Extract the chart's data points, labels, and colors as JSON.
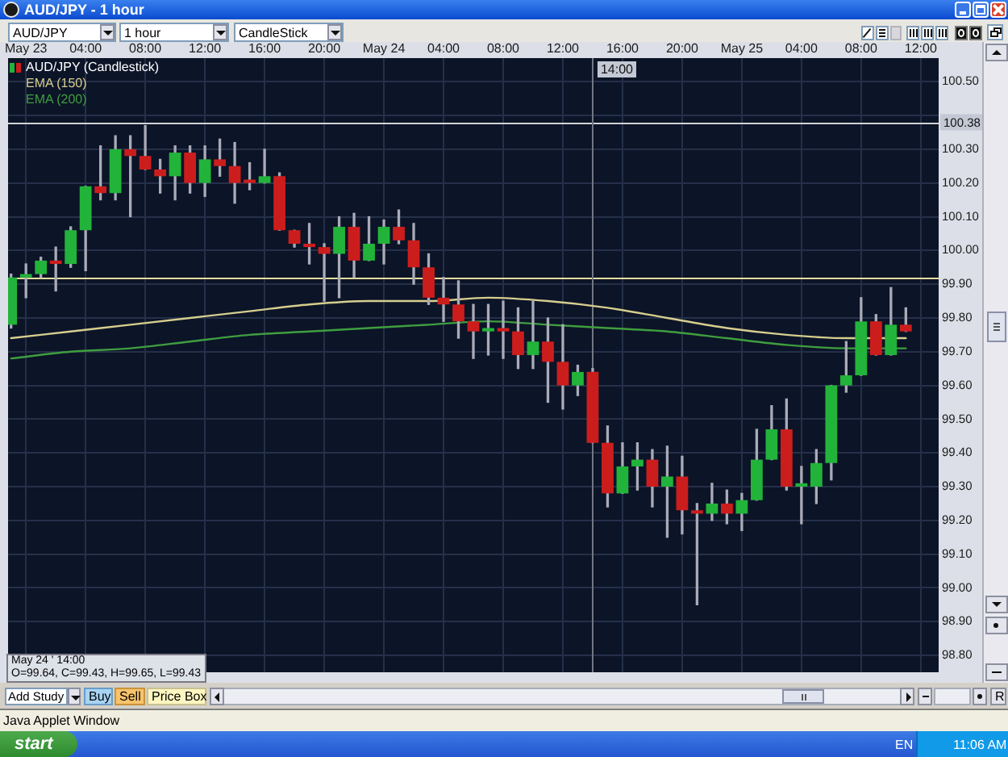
{
  "chart_data": {
    "type": "candlestick",
    "title": "AUD/JPY - 1 hour",
    "series": [
      {
        "name": "AUD/JPY (Candlestick)",
        "x": [
          "--05-22T23:00",
          "--05-23T00:00",
          "--05-23T01:00",
          "--05-23T02:00",
          "--05-23T03:00",
          "--05-23T04:00",
          "--05-23T05:00",
          "--05-23T06:00",
          "--05-23T07:00",
          "--05-23T08:00",
          "--05-23T09:00",
          "--05-23T10:00",
          "--05-23T11:00",
          "--05-23T12:00",
          "--05-23T13:00",
          "--05-23T14:00",
          "--05-23T15:00",
          "--05-23T16:00",
          "--05-23T17:00",
          "--05-23T18:00",
          "--05-23T19:00",
          "--05-23T20:00",
          "--05-23T21:00",
          "--05-23T22:00",
          "--05-23T23:00",
          "--05-24T00:00",
          "--05-24T01:00",
          "--05-24T02:00",
          "--05-24T03:00",
          "--05-24T04:00",
          "--05-24T05:00",
          "--05-24T06:00",
          "--05-24T07:00",
          "--05-24T08:00",
          "--05-24T09:00",
          "--05-24T10:00",
          "--05-24T11:00",
          "--05-24T12:00",
          "--05-24T13:00",
          "--05-24T14:00",
          "--05-24T15:00",
          "--05-24T16:00",
          "--05-24T17:00",
          "--05-24T18:00",
          "--05-24T19:00",
          "--05-24T20:00",
          "--05-24T21:00",
          "--05-24T22:00",
          "--05-24T23:00",
          "--05-25T00:00",
          "--05-25T01:00",
          "--05-25T02:00",
          "--05-25T03:00",
          "--05-25T04:00",
          "--05-25T05:00",
          "--05-25T06:00",
          "--05-25T07:00",
          "--05-25T08:00",
          "--05-25T09:00",
          "--05-25T10:00",
          "--05-25T11:00"
        ],
        "ohlc": [
          [
            99.78,
            99.93,
            99.77,
            99.92
          ],
          [
            99.92,
            99.96,
            99.86,
            99.93
          ],
          [
            99.93,
            99.98,
            99.92,
            99.97
          ],
          [
            99.97,
            100.01,
            99.88,
            99.96
          ],
          [
            99.96,
            100.07,
            99.95,
            100.06
          ],
          [
            100.06,
            100.19,
            99.94,
            100.19
          ],
          [
            100.19,
            100.31,
            100.15,
            100.17
          ],
          [
            100.17,
            100.34,
            100.15,
            100.3
          ],
          [
            100.3,
            100.34,
            100.1,
            100.28
          ],
          [
            100.28,
            100.37,
            100.24,
            100.24
          ],
          [
            100.24,
            100.27,
            100.17,
            100.22
          ],
          [
            100.22,
            100.31,
            100.15,
            100.29
          ],
          [
            100.29,
            100.31,
            100.17,
            100.2
          ],
          [
            100.2,
            100.31,
            100.16,
            100.27
          ],
          [
            100.27,
            100.33,
            100.22,
            100.25
          ],
          [
            100.25,
            100.32,
            100.14,
            100.2
          ],
          [
            100.21,
            100.26,
            100.18,
            100.2
          ],
          [
            100.2,
            100.3,
            100.2,
            100.22
          ],
          [
            100.22,
            100.23,
            100.06,
            100.06
          ],
          [
            100.06,
            100.06,
            100.01,
            100.02
          ],
          [
            100.02,
            100.08,
            99.96,
            100.01
          ],
          [
            100.01,
            100.02,
            99.85,
            99.99
          ],
          [
            99.99,
            100.1,
            99.86,
            100.07
          ],
          [
            100.07,
            100.11,
            99.92,
            99.97
          ],
          [
            99.97,
            100.1,
            99.97,
            100.02
          ],
          [
            100.02,
            100.09,
            99.96,
            100.07
          ],
          [
            100.07,
            100.12,
            100.02,
            100.03
          ],
          [
            100.03,
            100.08,
            99.9,
            99.95
          ],
          [
            99.95,
            99.99,
            99.84,
            99.86
          ],
          [
            99.86,
            99.92,
            99.79,
            99.84
          ],
          [
            99.84,
            99.91,
            99.74,
            99.79
          ],
          [
            99.79,
            99.84,
            99.68,
            99.76
          ],
          [
            99.76,
            99.84,
            99.69,
            99.77
          ],
          [
            99.77,
            99.85,
            99.68,
            99.76
          ],
          [
            99.76,
            99.83,
            99.65,
            99.69
          ],
          [
            99.69,
            99.85,
            99.65,
            99.73
          ],
          [
            99.73,
            99.8,
            99.55,
            99.67
          ],
          [
            99.67,
            99.78,
            99.53,
            99.6
          ],
          [
            99.6,
            99.66,
            99.57,
            99.64
          ],
          [
            99.64,
            99.65,
            99.43,
            99.43
          ],
          [
            99.43,
            99.48,
            99.24,
            99.28
          ],
          [
            99.28,
            99.43,
            99.28,
            99.36
          ],
          [
            99.36,
            99.43,
            99.29,
            99.38
          ],
          [
            99.38,
            99.41,
            99.24,
            99.3
          ],
          [
            99.3,
            99.42,
            99.15,
            99.33
          ],
          [
            99.33,
            99.39,
            99.16,
            99.23
          ],
          [
            99.23,
            99.25,
            98.95,
            99.22
          ],
          [
            99.22,
            99.31,
            99.2,
            99.25
          ],
          [
            99.25,
            99.29,
            99.19,
            99.22
          ],
          [
            99.22,
            99.28,
            99.17,
            99.26
          ],
          [
            99.26,
            99.47,
            99.26,
            99.38
          ],
          [
            99.38,
            99.54,
            99.38,
            99.47
          ],
          [
            99.47,
            99.56,
            99.29,
            99.3
          ],
          [
            99.3,
            99.36,
            99.19,
            99.31
          ],
          [
            99.3,
            99.41,
            99.25,
            99.37
          ],
          [
            99.37,
            99.6,
            99.32,
            99.6
          ],
          [
            99.6,
            99.73,
            99.58,
            99.63
          ],
          [
            99.63,
            99.86,
            99.63,
            99.79
          ],
          [
            99.79,
            99.81,
            99.69,
            99.69
          ],
          [
            99.69,
            99.89,
            99.69,
            99.78
          ],
          [
            99.78,
            99.83,
            99.76,
            99.76
          ]
        ],
        "colors": [
          "#22b33a",
          "#22b33a",
          "#22b33a",
          "#cc1d1d",
          "#22b33a",
          "#22b33a",
          "#cc1d1d",
          "#22b33a",
          "#cc1d1d",
          "#cc1d1d",
          "#cc1d1d",
          "#22b33a",
          "#cc1d1d",
          "#22b33a",
          "#cc1d1d",
          "#cc1d1d",
          "#cc1d1d",
          "#22b33a",
          "#cc1d1d",
          "#cc1d1d",
          "#cc1d1d",
          "#cc1d1d",
          "#22b33a",
          "#cc1d1d",
          "#22b33a",
          "#22b33a",
          "#cc1d1d",
          "#cc1d1d",
          "#cc1d1d",
          "#cc1d1d",
          "#cc1d1d",
          "#cc1d1d",
          "#22b33a",
          "#cc1d1d",
          "#cc1d1d",
          "#22b33a",
          "#cc1d1d",
          "#cc1d1d",
          "#22b33a",
          "#cc1d1d",
          "#cc1d1d",
          "#22b33a",
          "#22b33a",
          "#cc1d1d",
          "#22b33a",
          "#cc1d1d",
          "#cc1d1d",
          "#22b33a",
          "#cc1d1d",
          "#22b33a",
          "#22b33a",
          "#22b33a",
          "#cc1d1d",
          "#22b33a",
          "#22b33a",
          "#22b33a",
          "#22b33a",
          "#22b33a",
          "#cc1d1d",
          "#22b33a",
          "#cc1d1d"
        ]
      },
      {
        "name": "EMA (150)",
        "type": "line",
        "color": "#d6ce8e",
        "x": [
          "--05-22T23:00",
          "--05-23T03:00",
          "--05-23T07:00",
          "--05-23T11:00",
          "--05-23T15:00",
          "--05-23T19:00",
          "--05-23T23:00",
          "--05-24T03:00",
          "--05-24T07:00",
          "--05-24T11:00",
          "--05-24T15:00",
          "--05-24T19:00",
          "--05-24T23:00",
          "--05-25T03:00",
          "--05-25T07:00",
          "--05-25T11:00"
        ],
        "values": [
          99.74,
          99.76,
          99.78,
          99.8,
          99.82,
          99.84,
          99.85,
          99.85,
          99.86,
          99.85,
          99.83,
          99.8,
          99.77,
          99.75,
          99.74,
          99.74
        ]
      },
      {
        "name": "EMA (200)",
        "type": "line",
        "color": "#3f9e3f",
        "x": [
          "--05-22T23:00",
          "--05-23T03:00",
          "--05-23T07:00",
          "--05-23T11:00",
          "--05-23T15:00",
          "--05-23T19:00",
          "--05-23T23:00",
          "--05-24T03:00",
          "--05-24T07:00",
          "--05-24T11:00",
          "--05-24T15:00",
          "--05-24T19:00",
          "--05-24T23:00",
          "--05-25T03:00",
          "--05-25T07:00",
          "--05-25T11:00"
        ],
        "values": [
          99.68,
          99.7,
          99.71,
          99.73,
          99.75,
          99.76,
          99.77,
          99.78,
          99.79,
          99.78,
          99.77,
          99.76,
          99.74,
          99.72,
          99.71,
          99.71
        ]
      }
    ],
    "xlim": [
      "--05-22T22:48",
      "--05-25T13:12"
    ],
    "xticks": [
      {
        "value": "--05-23T00:00",
        "label": "May 23"
      },
      {
        "value": "--05-23T04:00",
        "label": "04:00"
      },
      {
        "value": "--05-23T08:00",
        "label": "08:00"
      },
      {
        "value": "--05-23T12:00",
        "label": "12:00"
      },
      {
        "value": "--05-23T16:00",
        "label": "16:00"
      },
      {
        "value": "--05-23T20:00",
        "label": "20:00"
      },
      {
        "value": "--05-24T00:00",
        "label": "May 24"
      },
      {
        "value": "--05-24T04:00",
        "label": "04:00"
      },
      {
        "value": "--05-24T08:00",
        "label": "08:00"
      },
      {
        "value": "--05-24T12:00",
        "label": "12:00"
      },
      {
        "value": "--05-24T16:00",
        "label": "16:00"
      },
      {
        "value": "--05-24T20:00",
        "label": "20:00"
      },
      {
        "value": "--05-25T00:00",
        "label": "May 25"
      },
      {
        "value": "--05-25T04:00",
        "label": "04:00"
      },
      {
        "value": "--05-25T08:00",
        "label": "08:00"
      },
      {
        "value": "--05-25T12:00",
        "label": "12:00"
      }
    ],
    "ylim": [
      98.75,
      100.57
    ],
    "yticks": [
      {
        "value": 98.8,
        "label": "98.80"
      },
      {
        "value": 98.9,
        "label": "98.90"
      },
      {
        "value": 99.0,
        "label": "99.00"
      },
      {
        "value": 99.1,
        "label": "99.10"
      },
      {
        "value": 99.2,
        "label": "99.20"
      },
      {
        "value": 99.3,
        "label": "99.30"
      },
      {
        "value": 99.4,
        "label": "99.40"
      },
      {
        "value": 99.5,
        "label": "99.50"
      },
      {
        "value": 99.6,
        "label": "99.60"
      },
      {
        "value": 99.7,
        "label": "99.70"
      },
      {
        "value": 99.8,
        "label": "99.80"
      },
      {
        "value": 99.9,
        "label": "99.90"
      },
      {
        "value": 100.0,
        "label": "100.00"
      },
      {
        "value": 100.1,
        "label": "100.10"
      },
      {
        "value": 100.2,
        "label": "100.20"
      },
      {
        "value": 100.3,
        "label": "100.30"
      },
      {
        "value": 100.4,
        "label": null
      },
      {
        "value": 100.5,
        "label": "100.50"
      }
    ],
    "ref_lines": [
      {
        "axis": "y",
        "value": 100.38,
        "label": "100.38",
        "color": "#d2d2d6"
      },
      {
        "axis": "y",
        "value": 99.92,
        "color": "#e4dc9c"
      },
      {
        "axis": "x",
        "value": "--05-24T14:00",
        "label": "14:00",
        "color": "#737784"
      }
    ],
    "annotations": [
      "AUD/JPY",
      "1 hour",
      "CandleStick",
      "May 24 ' 14:00",
      "O=99.64, C=99.43, H=99.65, L=99.43",
      "Add Study",
      "Buy",
      "Sell",
      "Price Box",
      "R",
      "Java Applet Window",
      "start",
      "EN",
      "11:06 AM"
    ],
    "grid": true,
    "legend": "top left"
  }
}
